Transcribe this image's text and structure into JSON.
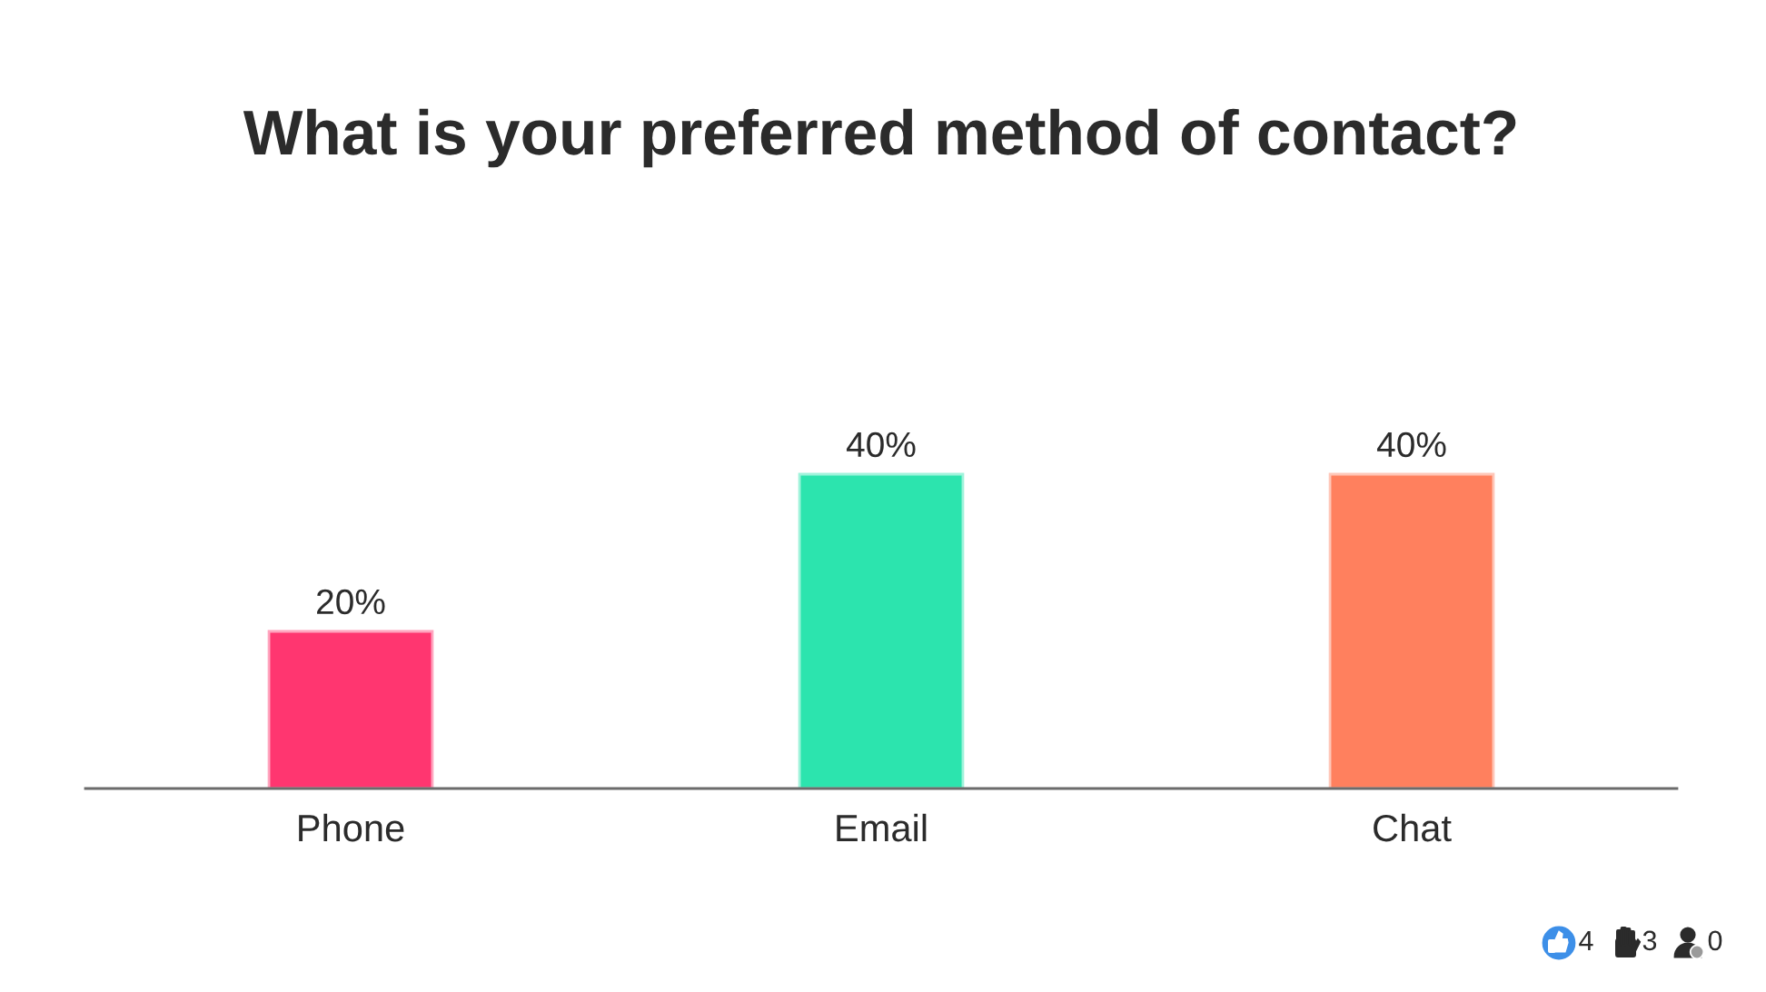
{
  "chart_data": {
    "type": "bar",
    "title": "What is your preferred method of contact?",
    "categories": [
      "Phone",
      "Email",
      "Chat"
    ],
    "values": [
      20,
      40,
      40
    ],
    "value_labels": [
      "20%",
      "40%",
      "40%"
    ],
    "colors": [
      "#ff3670",
      "#2ce4ae",
      "#ff805e"
    ],
    "annotations": [
      "4",
      "3",
      "0"
    ]
  }
}
